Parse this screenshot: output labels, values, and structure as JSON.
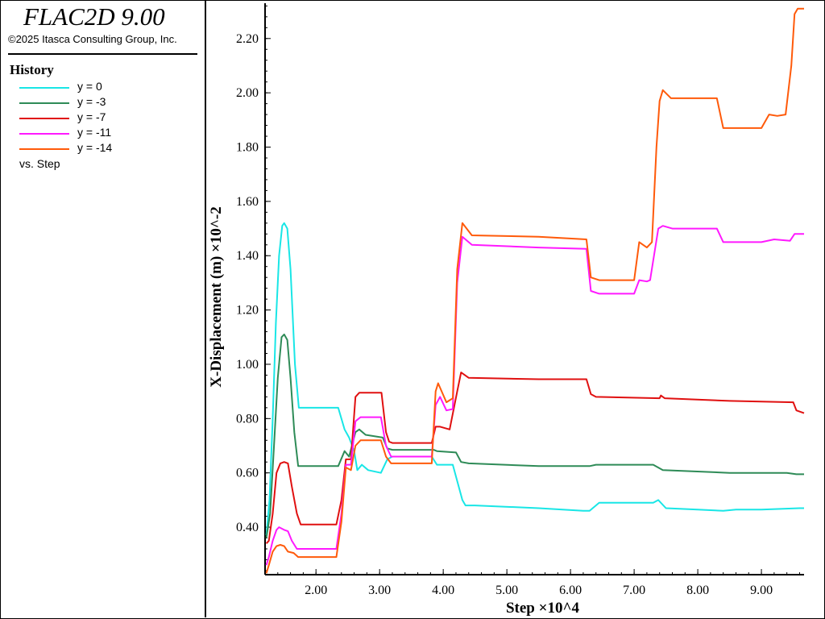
{
  "app": {
    "title": "FLAC2D 9.00",
    "copyright": "©2025 Itasca Consulting Group, Inc."
  },
  "legend": {
    "heading": "History",
    "footer": "vs. Step"
  },
  "colors": {
    "cyan": "#19e6e6",
    "green": "#2e8b57",
    "red": "#e01010",
    "magenta": "#ff19ff",
    "orange": "#ff5a0a"
  },
  "chart_data": {
    "type": "line",
    "xlabel": "Step ×10^4",
    "ylabel": "X-Displacement (m) ×10^-2",
    "xlim": [
      1.2,
      9.67
    ],
    "ylim": [
      0.225,
      2.33
    ],
    "x_ticks": [
      "2.00",
      "3.00",
      "4.00",
      "5.00",
      "6.00",
      "7.00",
      "8.00",
      "9.00"
    ],
    "y_ticks": [
      "0.40",
      "0.60",
      "0.80",
      "1.00",
      "1.20",
      "1.40",
      "1.60",
      "1.80",
      "2.00",
      "2.20"
    ],
    "grid": false,
    "legend_position": "left-panel",
    "series": [
      {
        "name": "y = 0",
        "color": "#19e6e6",
        "points": [
          [
            1.22,
            0.37
          ],
          [
            1.27,
            0.5
          ],
          [
            1.32,
            0.8
          ],
          [
            1.37,
            1.15
          ],
          [
            1.42,
            1.4
          ],
          [
            1.47,
            1.51
          ],
          [
            1.5,
            1.52
          ],
          [
            1.55,
            1.5
          ],
          [
            1.6,
            1.35
          ],
          [
            1.67,
            1.0
          ],
          [
            1.73,
            0.84
          ],
          [
            2.35,
            0.84
          ],
          [
            2.45,
            0.76
          ],
          [
            2.52,
            0.73
          ],
          [
            2.6,
            0.68
          ],
          [
            2.65,
            0.61
          ],
          [
            2.72,
            0.63
          ],
          [
            2.82,
            0.61
          ],
          [
            3.02,
            0.6
          ],
          [
            3.12,
            0.65
          ],
          [
            3.2,
            0.66
          ],
          [
            3.82,
            0.66
          ],
          [
            3.9,
            0.63
          ],
          [
            4.15,
            0.63
          ],
          [
            4.3,
            0.5
          ],
          [
            4.35,
            0.48
          ],
          [
            4.5,
            0.48
          ],
          [
            5.5,
            0.47
          ],
          [
            6.2,
            0.46
          ],
          [
            6.3,
            0.46
          ],
          [
            6.45,
            0.49
          ],
          [
            7.3,
            0.49
          ],
          [
            7.38,
            0.5
          ],
          [
            7.5,
            0.47
          ],
          [
            8.0,
            0.465
          ],
          [
            8.4,
            0.46
          ],
          [
            8.6,
            0.465
          ],
          [
            9.0,
            0.465
          ],
          [
            9.6,
            0.47
          ],
          [
            9.67,
            0.47
          ]
        ]
      },
      {
        "name": "y = -3",
        "color": "#2e8b57",
        "points": [
          [
            1.22,
            0.36
          ],
          [
            1.28,
            0.45
          ],
          [
            1.34,
            0.7
          ],
          [
            1.4,
            0.95
          ],
          [
            1.46,
            1.1
          ],
          [
            1.5,
            1.11
          ],
          [
            1.55,
            1.09
          ],
          [
            1.6,
            0.95
          ],
          [
            1.66,
            0.75
          ],
          [
            1.72,
            0.625
          ],
          [
            2.35,
            0.625
          ],
          [
            2.45,
            0.68
          ],
          [
            2.52,
            0.66
          ],
          [
            2.62,
            0.75
          ],
          [
            2.68,
            0.76
          ],
          [
            2.78,
            0.74
          ],
          [
            3.05,
            0.73
          ],
          [
            3.12,
            0.69
          ],
          [
            3.2,
            0.685
          ],
          [
            3.85,
            0.685
          ],
          [
            3.9,
            0.68
          ],
          [
            4.2,
            0.675
          ],
          [
            4.28,
            0.64
          ],
          [
            4.4,
            0.635
          ],
          [
            5.5,
            0.625
          ],
          [
            6.3,
            0.625
          ],
          [
            6.4,
            0.63
          ],
          [
            7.3,
            0.63
          ],
          [
            7.45,
            0.61
          ],
          [
            8.5,
            0.6
          ],
          [
            9.4,
            0.6
          ],
          [
            9.55,
            0.595
          ],
          [
            9.67,
            0.595
          ]
        ]
      },
      {
        "name": "y = -7",
        "color": "#e01010",
        "points": [
          [
            1.22,
            0.34
          ],
          [
            1.26,
            0.35
          ],
          [
            1.32,
            0.45
          ],
          [
            1.38,
            0.6
          ],
          [
            1.44,
            0.635
          ],
          [
            1.5,
            0.64
          ],
          [
            1.56,
            0.635
          ],
          [
            1.62,
            0.55
          ],
          [
            1.7,
            0.45
          ],
          [
            1.76,
            0.41
          ],
          [
            2.32,
            0.41
          ],
          [
            2.4,
            0.5
          ],
          [
            2.47,
            0.65
          ],
          [
            2.55,
            0.65
          ],
          [
            2.62,
            0.88
          ],
          [
            2.68,
            0.895
          ],
          [
            3.03,
            0.895
          ],
          [
            3.1,
            0.75
          ],
          [
            3.15,
            0.715
          ],
          [
            3.2,
            0.71
          ],
          [
            3.82,
            0.71
          ],
          [
            3.88,
            0.77
          ],
          [
            3.95,
            0.77
          ],
          [
            4.1,
            0.76
          ],
          [
            4.22,
            0.9
          ],
          [
            4.28,
            0.97
          ],
          [
            4.4,
            0.95
          ],
          [
            5.5,
            0.945
          ],
          [
            6.25,
            0.945
          ],
          [
            6.32,
            0.89
          ],
          [
            6.4,
            0.88
          ],
          [
            7.4,
            0.875
          ],
          [
            7.42,
            0.885
          ],
          [
            7.48,
            0.875
          ],
          [
            8.5,
            0.865
          ],
          [
            9.5,
            0.86
          ],
          [
            9.55,
            0.83
          ],
          [
            9.67,
            0.82
          ]
        ]
      },
      {
        "name": "y = -11",
        "color": "#ff19ff",
        "points": [
          [
            1.22,
            0.26
          ],
          [
            1.26,
            0.29
          ],
          [
            1.32,
            0.35
          ],
          [
            1.38,
            0.39
          ],
          [
            1.42,
            0.4
          ],
          [
            1.5,
            0.39
          ],
          [
            1.56,
            0.385
          ],
          [
            1.62,
            0.35
          ],
          [
            1.7,
            0.32
          ],
          [
            2.32,
            0.32
          ],
          [
            2.4,
            0.45
          ],
          [
            2.47,
            0.63
          ],
          [
            2.55,
            0.63
          ],
          [
            2.62,
            0.79
          ],
          [
            2.7,
            0.805
          ],
          [
            3.02,
            0.805
          ],
          [
            3.1,
            0.7
          ],
          [
            3.18,
            0.66
          ],
          [
            3.82,
            0.66
          ],
          [
            3.88,
            0.85
          ],
          [
            3.95,
            0.88
          ],
          [
            4.05,
            0.83
          ],
          [
            4.15,
            0.835
          ],
          [
            4.22,
            1.3
          ],
          [
            4.3,
            1.47
          ],
          [
            4.45,
            1.44
          ],
          [
            5.5,
            1.43
          ],
          [
            6.25,
            1.425
          ],
          [
            6.32,
            1.27
          ],
          [
            6.45,
            1.26
          ],
          [
            7.0,
            1.26
          ],
          [
            7.08,
            1.31
          ],
          [
            7.2,
            1.305
          ],
          [
            7.25,
            1.31
          ],
          [
            7.38,
            1.5
          ],
          [
            7.45,
            1.51
          ],
          [
            7.6,
            1.5
          ],
          [
            8.3,
            1.5
          ],
          [
            8.4,
            1.45
          ],
          [
            9.0,
            1.45
          ],
          [
            9.2,
            1.46
          ],
          [
            9.45,
            1.455
          ],
          [
            9.52,
            1.48
          ],
          [
            9.67,
            1.48
          ]
        ]
      },
      {
        "name": "y = -14",
        "color": "#ff5a0a",
        "points": [
          [
            1.22,
            0.23
          ],
          [
            1.26,
            0.26
          ],
          [
            1.32,
            0.31
          ],
          [
            1.38,
            0.33
          ],
          [
            1.44,
            0.335
          ],
          [
            1.5,
            0.33
          ],
          [
            1.56,
            0.31
          ],
          [
            1.65,
            0.305
          ],
          [
            1.72,
            0.29
          ],
          [
            2.32,
            0.29
          ],
          [
            2.4,
            0.42
          ],
          [
            2.47,
            0.62
          ],
          [
            2.55,
            0.61
          ],
          [
            2.62,
            0.7
          ],
          [
            2.7,
            0.72
          ],
          [
            3.02,
            0.72
          ],
          [
            3.1,
            0.66
          ],
          [
            3.18,
            0.635
          ],
          [
            3.82,
            0.635
          ],
          [
            3.88,
            0.9
          ],
          [
            3.92,
            0.93
          ],
          [
            4.05,
            0.86
          ],
          [
            4.15,
            0.875
          ],
          [
            4.22,
            1.35
          ],
          [
            4.3,
            1.52
          ],
          [
            4.45,
            1.475
          ],
          [
            5.5,
            1.47
          ],
          [
            6.25,
            1.46
          ],
          [
            6.32,
            1.32
          ],
          [
            6.45,
            1.31
          ],
          [
            7.0,
            1.31
          ],
          [
            7.08,
            1.45
          ],
          [
            7.2,
            1.43
          ],
          [
            7.28,
            1.45
          ],
          [
            7.35,
            1.8
          ],
          [
            7.4,
            1.97
          ],
          [
            7.45,
            2.01
          ],
          [
            7.58,
            1.98
          ],
          [
            8.3,
            1.98
          ],
          [
            8.4,
            1.87
          ],
          [
            9.0,
            1.87
          ],
          [
            9.12,
            1.92
          ],
          [
            9.25,
            1.915
          ],
          [
            9.38,
            1.92
          ],
          [
            9.47,
            2.1
          ],
          [
            9.52,
            2.29
          ],
          [
            9.57,
            2.31
          ],
          [
            9.67,
            2.31
          ]
        ]
      }
    ]
  }
}
